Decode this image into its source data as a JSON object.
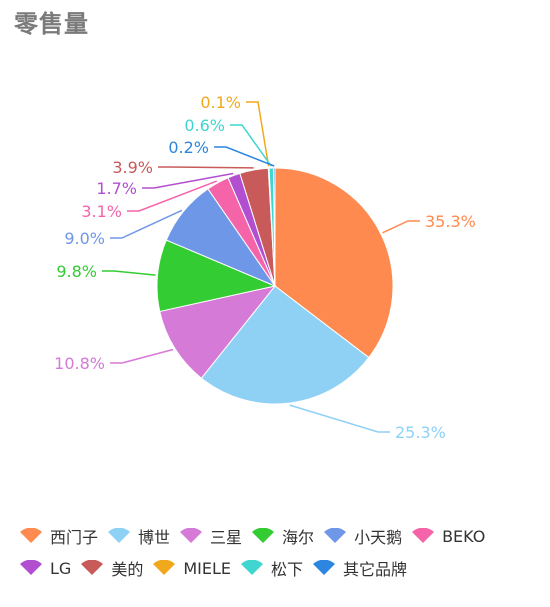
{
  "title": "零售量",
  "chart_data": {
    "type": "pie",
    "title": "零售量",
    "legend_position": "bottom",
    "series": [
      {
        "name": "西门子",
        "value": 35.3,
        "label": "35.3%",
        "color": "#FF8A50"
      },
      {
        "name": "博世",
        "value": 25.3,
        "label": "25.3%",
        "color": "#8ED1F5"
      },
      {
        "name": "三星",
        "value": 10.8,
        "label": "10.8%",
        "color": "#D57AD6"
      },
      {
        "name": "海尔",
        "value": 9.8,
        "label": "9.8%",
        "color": "#33CC33"
      },
      {
        "name": "小天鹅",
        "value": 9.0,
        "label": "9.0%",
        "color": "#6F97E8"
      },
      {
        "name": "BEKO",
        "value": 3.1,
        "label": "3.1%",
        "color": "#F564A9"
      },
      {
        "name": "LG",
        "value": 1.7,
        "label": "1.7%",
        "color": "#B24FD1"
      },
      {
        "name": "美的",
        "value": 3.9,
        "label": "3.9%",
        "color": "#C85A5A"
      },
      {
        "name": "MIELE",
        "value": 0.1,
        "label": "0.1%",
        "color": "#F2A81D"
      },
      {
        "name": "松下",
        "value": 0.6,
        "label": "0.6%",
        "color": "#3FD6CF"
      },
      {
        "name": "其它品牌",
        "value": 0.2,
        "label": "0.2%",
        "color": "#2C86E0"
      }
    ]
  }
}
